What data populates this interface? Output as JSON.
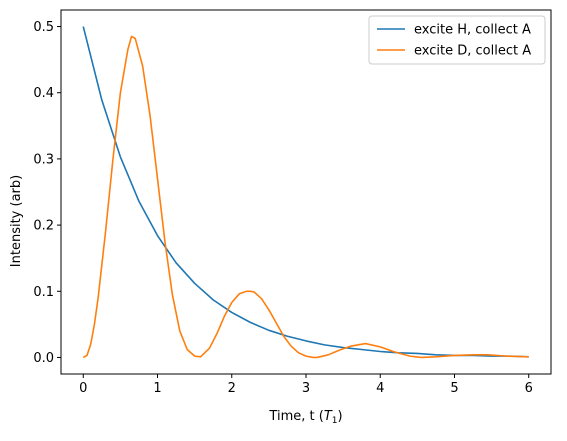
{
  "chart_data": {
    "type": "line",
    "xlabel": "Time, t (",
    "xlabel_math": "T",
    "xlabel_sub": "1",
    "xlabel_close": ")",
    "ylabel": "Intensity (arb)",
    "xlim": [
      -0.3,
      6.3
    ],
    "ylim": [
      -0.025,
      0.525
    ],
    "xticks": [
      0,
      1,
      2,
      3,
      4,
      5,
      6
    ],
    "xtick_labels": [
      "0",
      "1",
      "2",
      "3",
      "4",
      "5",
      "6"
    ],
    "yticks": [
      0.0,
      0.1,
      0.2,
      0.3,
      0.4,
      0.5
    ],
    "ytick_labels": [
      "0.0",
      "0.1",
      "0.2",
      "0.3",
      "0.4",
      "0.5"
    ],
    "grid": false,
    "legend_position": "top-right",
    "series": [
      {
        "name": "excite H, collect A",
        "color": "#1f77b4",
        "x": [
          0,
          0.25,
          0.5,
          0.75,
          1.0,
          1.25,
          1.5,
          1.75,
          2.0,
          2.25,
          2.5,
          2.75,
          3.0,
          3.25,
          3.5,
          3.75,
          4.0,
          4.25,
          4.5,
          4.75,
          5.0,
          5.25,
          5.5,
          5.75,
          6.0
        ],
        "y": [
          0.5,
          0.389,
          0.303,
          0.236,
          0.184,
          0.143,
          0.112,
          0.087,
          0.068,
          0.053,
          0.041,
          0.032,
          0.025,
          0.019,
          0.015,
          0.012,
          0.009,
          0.007,
          0.006,
          0.004,
          0.003,
          0.003,
          0.002,
          0.002,
          0.001
        ]
      },
      {
        "name": "excite D, collect A",
        "color": "#ff7f0e",
        "x": [
          0,
          0.05,
          0.1,
          0.15,
          0.2,
          0.3,
          0.4,
          0.5,
          0.6,
          0.65,
          0.7,
          0.8,
          0.9,
          1.0,
          1.1,
          1.2,
          1.3,
          1.4,
          1.5,
          1.58,
          1.7,
          1.8,
          1.9,
          2.0,
          2.1,
          2.2,
          2.25,
          2.3,
          2.4,
          2.5,
          2.6,
          2.7,
          2.8,
          2.9,
          3.0,
          3.1,
          3.15,
          3.3,
          3.45,
          3.6,
          3.8,
          4.0,
          4.2,
          4.4,
          4.55,
          4.75,
          5.0,
          5.25,
          5.45,
          5.7,
          6.0
        ],
        "y": [
          0.0,
          0.003,
          0.02,
          0.05,
          0.09,
          0.19,
          0.3,
          0.4,
          0.465,
          0.485,
          0.482,
          0.44,
          0.365,
          0.27,
          0.175,
          0.095,
          0.04,
          0.012,
          0.002,
          0.001,
          0.014,
          0.036,
          0.062,
          0.083,
          0.096,
          0.1,
          0.1,
          0.099,
          0.089,
          0.072,
          0.052,
          0.032,
          0.017,
          0.007,
          0.002,
          0.0,
          0.0,
          0.004,
          0.011,
          0.017,
          0.021,
          0.016,
          0.008,
          0.002,
          0.0,
          0.001,
          0.003,
          0.004,
          0.004,
          0.002,
          0.001
        ]
      }
    ]
  }
}
